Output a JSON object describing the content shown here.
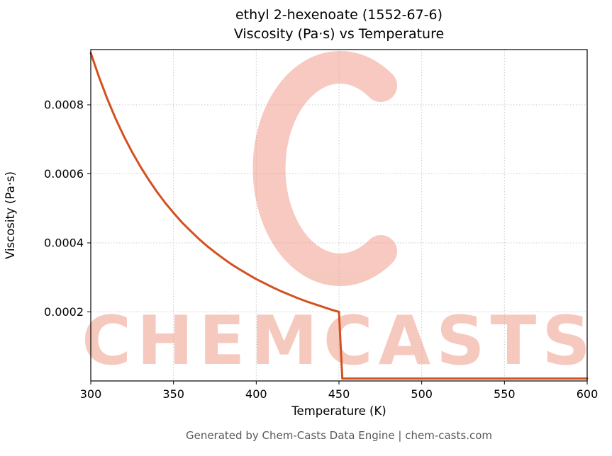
{
  "title": {
    "line1": "ethyl 2-hexenoate (1552-67-6)",
    "line2": "Viscosity (Pa·s) vs Temperature"
  },
  "footer": {
    "text": "Generated by Chem-Casts Data Engine | chem-casts.com"
  },
  "watermark": {
    "text": "CHEMCASTS",
    "logo": "c-swirl-logo",
    "color": "#ef9481"
  },
  "chart_data": {
    "type": "line",
    "title": "ethyl 2-hexenoate (1552-67-6)\nViscosity (Pa·s) vs Temperature",
    "title_lines": [
      "ethyl 2-hexenoate (1552-67-6)",
      "Viscosity (Pa·s) vs Temperature"
    ],
    "xlabel": "Temperature (K)",
    "ylabel": "Viscosity (Pa·s)",
    "xlim": [
      300,
      600
    ],
    "ylim": [
      0,
      0.00096
    ],
    "xticks": [
      300,
      350,
      400,
      450,
      500,
      550,
      600
    ],
    "yticks": [
      0.0002,
      0.0004,
      0.0006,
      0.0008
    ],
    "ytick_labels": [
      "0.0002",
      "0.0004",
      "0.0006",
      "0.0008"
    ],
    "grid": true,
    "grid_style": "dotted",
    "grid_color": "#c9c9c9",
    "legend": false,
    "line_color": "#d2511f",
    "series": [
      {
        "name": "viscosity",
        "x": [
          300,
          305,
          310,
          315,
          320,
          325,
          330,
          335,
          340,
          345,
          350,
          355,
          360,
          365,
          370,
          375,
          380,
          385,
          390,
          395,
          400,
          405,
          410,
          415,
          420,
          425,
          430,
          435,
          440,
          445,
          450,
          452,
          455,
          460,
          470,
          480,
          490,
          500,
          510,
          520,
          530,
          540,
          550,
          560,
          570,
          580,
          590,
          600
        ],
        "y": [
          0.00095,
          0.00088,
          0.000817,
          0.00076,
          0.000709,
          0.000663,
          0.000621,
          0.000583,
          0.000548,
          0.000516,
          0.000487,
          0.00046,
          0.000436,
          0.000413,
          0.000392,
          0.000373,
          0.000355,
          0.000338,
          0.000323,
          0.000309,
          0.000295,
          0.000283,
          0.000271,
          0.00026,
          0.00025,
          0.00024,
          0.000231,
          0.000223,
          0.000215,
          0.000207,
          0.0002,
          7e-06,
          7e-06,
          7e-06,
          7e-06,
          7e-06,
          7e-06,
          7e-06,
          7e-06,
          7e-06,
          7e-06,
          7e-06,
          7e-06,
          7e-06,
          7e-06,
          7e-06,
          7e-06,
          7e-06
        ]
      }
    ]
  }
}
